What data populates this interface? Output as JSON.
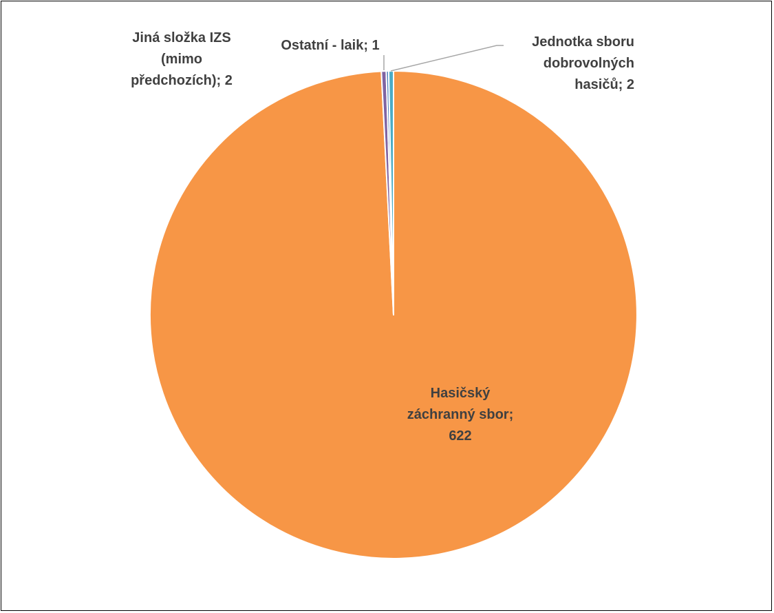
{
  "chart_data": {
    "type": "pie",
    "title": "",
    "start_angle_deg": 0,
    "direction": "clockwise",
    "slices": [
      {
        "label": "Hasičský záchranný sbor",
        "value": 622,
        "color": "#F79646",
        "label_lines": [
          "Hasičský",
          "záchranný sbor;",
          "622"
        ]
      },
      {
        "label": "Jednotka sboru dobrovolných hasičů",
        "value": 2,
        "color": "#8064A2",
        "label_lines": [
          "Jednotka sboru",
          "dobrovolných",
          "hasičů; 2"
        ]
      },
      {
        "label": "Ostatní - laik",
        "value": 1,
        "color": "#4F81BD",
        "label_lines": [
          "Ostatní - laik; 1"
        ]
      },
      {
        "label": "Jiná složka IZS (mimo předchozích)",
        "value": 2,
        "color": "#4BACC6",
        "label_lines": [
          "Jiná složka IZS",
          "(mimo",
          "předchozích); 2"
        ]
      }
    ]
  }
}
